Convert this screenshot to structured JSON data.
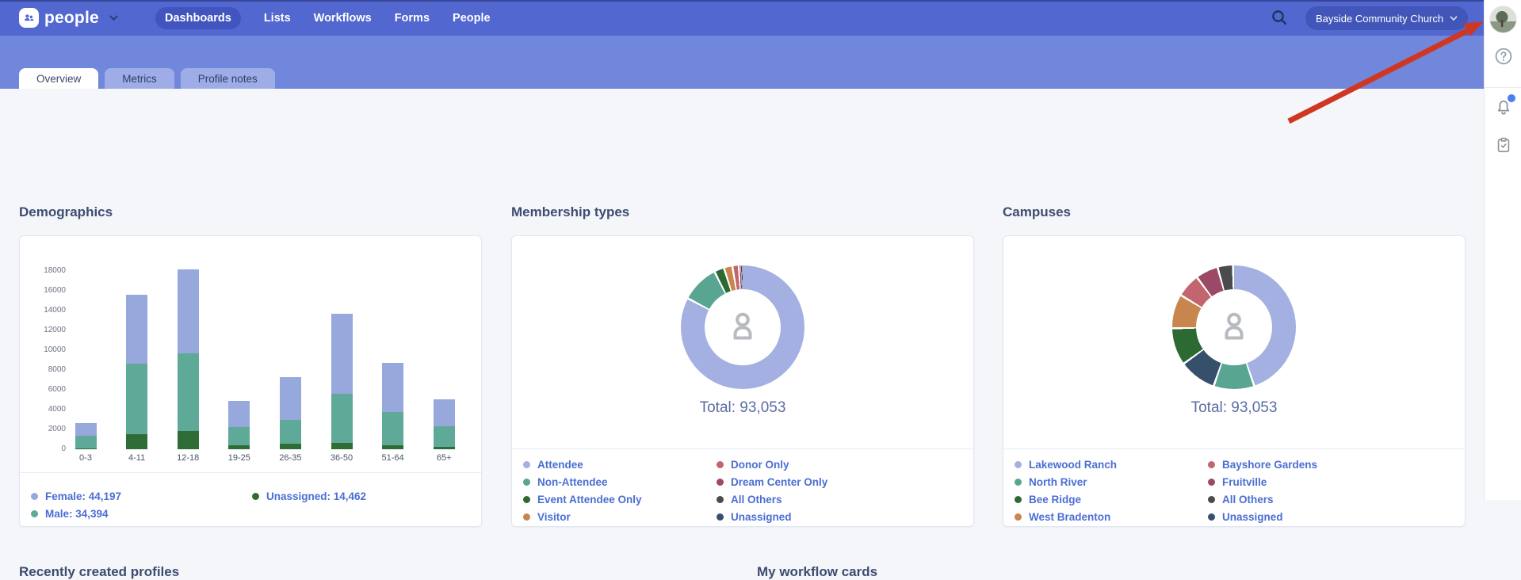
{
  "topbar": {
    "logo_text": "people",
    "nav_items": [
      {
        "label": "Dashboards",
        "active": true
      },
      {
        "label": "Lists",
        "active": false
      },
      {
        "label": "Workflows",
        "active": false
      },
      {
        "label": "Forms",
        "active": false
      },
      {
        "label": "People",
        "active": false
      }
    ],
    "org_button": {
      "label": "Bayside Community Church"
    }
  },
  "tabs": [
    {
      "label": "Overview",
      "active": true
    },
    {
      "label": "Metrics",
      "active": false
    },
    {
      "label": "Profile notes",
      "active": false
    }
  ],
  "sections": {
    "demographics_title": "Demographics",
    "membership_title": "Membership types",
    "campuses_title": "Campuses",
    "recently_created_title": "Recently created profiles",
    "workflow_cards_title": "My workflow cards"
  },
  "chart_data": [
    {
      "id": "demographics",
      "type": "bar",
      "stacked": true,
      "title": "Demographics",
      "categories": [
        "0-3",
        "4-11",
        "12-18",
        "19-25",
        "26-35",
        "36-50",
        "51-64",
        "65+"
      ],
      "series": [
        {
          "name": "Unassigned",
          "color": "#306c36",
          "values": [
            50,
            1520,
            1840,
            370,
            540,
            640,
            380,
            260
          ]
        },
        {
          "name": "Male",
          "color": "#5ea997",
          "values": [
            1300,
            7140,
            7860,
            1870,
            2400,
            4940,
            3400,
            2060
          ]
        },
        {
          "name": "Female",
          "color": "#96a8dc",
          "values": [
            1300,
            6960,
            8460,
            2660,
            4360,
            8100,
            4960,
            2740
          ]
        }
      ],
      "y_ticks": [
        0,
        2000,
        4000,
        6000,
        8000,
        10000,
        12000,
        14000,
        16000,
        18000
      ],
      "ylim": [
        0,
        18000
      ],
      "totals": {
        "female": "44,197",
        "male": "34,394",
        "unassigned": "14,462"
      },
      "legend": [
        {
          "label": "Female: 44,197",
          "color": "#96a8dc"
        },
        {
          "label": "Male: 34,394",
          "color": "#5ea997"
        },
        {
          "label": "Unassigned: 14,462",
          "color": "#306c36"
        }
      ],
      "legend_rows": 2
    },
    {
      "id": "membership",
      "type": "donut",
      "title": "Membership types",
      "total_label": "Total: 93,053",
      "segments": [
        {
          "name": "Attendee",
          "color": "#a3b0e1",
          "pct": 83.0
        },
        {
          "name": "Non-Attendee",
          "color": "#58a691",
          "pct": 9.8
        },
        {
          "name": "Event Attendee Only",
          "color": "#2d6a33",
          "pct": 2.6
        },
        {
          "name": "Visitor",
          "color": "#c8854e",
          "pct": 2.2
        },
        {
          "name": "Donor Only",
          "color": "#c2656e",
          "pct": 1.6
        },
        {
          "name": "Dream Center Only",
          "color": "#9a4a66",
          "pct": 0.4
        },
        {
          "name": "All Others",
          "color": "#4b4b4e",
          "pct": 0.2
        },
        {
          "name": "Unassigned",
          "color": "#36506c",
          "pct": 0.2
        }
      ],
      "legend": [
        {
          "label": "Attendee",
          "color": "#a3b0e1"
        },
        {
          "label": "Non-Attendee",
          "color": "#58a691"
        },
        {
          "label": "Event Attendee Only",
          "color": "#2d6a33"
        },
        {
          "label": "Visitor",
          "color": "#c8854e"
        },
        {
          "label": "Donor Only",
          "color": "#c2656e"
        },
        {
          "label": "Dream Center Only",
          "color": "#9a4a66"
        },
        {
          "label": "All Others",
          "color": "#4b4b4e"
        },
        {
          "label": "Unassigned",
          "color": "#36506c"
        }
      ],
      "legend_rows": 4
    },
    {
      "id": "campuses",
      "type": "donut",
      "title": "Campuses",
      "total_label": "Total: 93,053",
      "segments": [
        {
          "name": "Lakewood Ranch",
          "color": "#a3b0e1",
          "pct": 45.0
        },
        {
          "name": "North River",
          "color": "#58a691",
          "pct": 10.6
        },
        {
          "name": "Unassigned",
          "color": "#36506c",
          "pct": 9.7
        },
        {
          "name": "Bee Ridge",
          "color": "#2d6a33",
          "pct": 9.7
        },
        {
          "name": "West Bradenton",
          "color": "#c8854e",
          "pct": 8.9
        },
        {
          "name": "Bayshore Gardens",
          "color": "#c2656e",
          "pct": 6.2
        },
        {
          "name": "Fruitville",
          "color": "#9a4a66",
          "pct": 5.9
        },
        {
          "name": "All Others",
          "color": "#4b4b4e",
          "pct": 4.0
        }
      ],
      "legend": [
        {
          "label": "Lakewood Ranch",
          "color": "#a3b0e1"
        },
        {
          "label": "North River",
          "color": "#58a691"
        },
        {
          "label": "Bee Ridge",
          "color": "#2d6a33"
        },
        {
          "label": "West Bradenton",
          "color": "#c8854e"
        },
        {
          "label": "Bayshore Gardens",
          "color": "#c2656e"
        },
        {
          "label": "Fruitville",
          "color": "#9a4a66"
        },
        {
          "label": "All Others",
          "color": "#4b4b4e"
        },
        {
          "label": "Unassigned",
          "color": "#36506c"
        }
      ],
      "legend_rows": 4
    }
  ],
  "colors": {
    "navbar": "#5267cf",
    "tab_band": "#7187dc",
    "active_nav_pill": "#4254bd",
    "org_pill": "#4156b8",
    "legend_link": "#4a6ed3",
    "notification_badge": "#4d7df2",
    "annotation_arrow": "#cf3722"
  }
}
